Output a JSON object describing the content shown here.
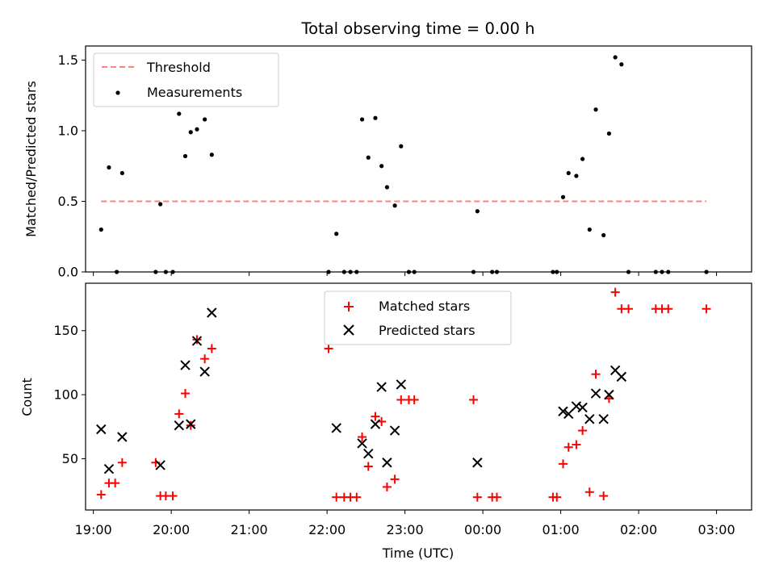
{
  "chart_data": [
    {
      "type": "scatter",
      "title": "Total observing time = 0.00 h",
      "ylabel": "Matched/Predicted stars",
      "xlabel": "",
      "xlim_hours": [
        18.9,
        27.45
      ],
      "ylim": [
        0,
        1.6
      ],
      "yticks": [
        0.0,
        0.5,
        1.0,
        1.5
      ],
      "ytick_labels": [
        "0.0",
        "0.5",
        "1.0",
        "1.5"
      ],
      "grid": false,
      "legend_position": "upper-left",
      "threshold": {
        "name": "Threshold",
        "value": 0.5,
        "x_range_hours": [
          19.1,
          26.87
        ],
        "color": "#ff8080",
        "style": "dashed"
      },
      "series": [
        {
          "name": "Measurements",
          "color": "#000000",
          "marker": "dot",
          "x_hours": [
            19.1,
            19.2,
            19.3,
            19.37,
            19.8,
            19.86,
            19.93,
            20.02,
            20.1,
            20.18,
            20.25,
            20.33,
            20.43,
            20.52,
            22.02,
            22.12,
            22.22,
            22.3,
            22.38,
            22.45,
            22.53,
            22.62,
            22.7,
            22.77,
            22.87,
            22.95,
            23.05,
            23.12,
            23.88,
            23.93,
            24.12,
            24.18,
            24.9,
            24.95,
            25.03,
            25.1,
            25.2,
            25.28,
            25.37,
            25.45,
            25.55,
            25.62,
            25.7,
            25.78,
            25.87,
            26.22,
            26.3,
            26.38,
            26.87
          ],
          "y": [
            0.3,
            0.74,
            0.0,
            0.7,
            0.0,
            0.48,
            0.0,
            0.0,
            1.12,
            0.82,
            0.99,
            1.01,
            1.08,
            0.83,
            0.0,
            0.27,
            0.0,
            0.0,
            0.0,
            1.08,
            0.81,
            1.09,
            0.75,
            0.6,
            0.47,
            0.89,
            0.0,
            0.0,
            0.0,
            0.43,
            0.0,
            0.0,
            0.0,
            0.0,
            0.53,
            0.7,
            0.68,
            0.8,
            0.3,
            1.15,
            0.26,
            0.98,
            1.52,
            1.47,
            0.0,
            0.0,
            0.0,
            0.0,
            0.0
          ]
        }
      ]
    },
    {
      "type": "scatter",
      "title": "",
      "ylabel": "Count",
      "xlabel": "Time (UTC)",
      "xlim_hours": [
        18.9,
        27.45
      ],
      "xticks_hours": [
        19,
        20,
        21,
        22,
        23,
        24,
        25,
        26,
        27
      ],
      "xtick_labels": [
        "19:00",
        "20:00",
        "21:00",
        "22:00",
        "23:00",
        "00:00",
        "01:00",
        "02:00",
        "03:00"
      ],
      "ylim": [
        10,
        187
      ],
      "yticks": [
        50,
        100,
        150
      ],
      "ytick_labels": [
        "50",
        "100",
        "150"
      ],
      "grid": false,
      "legend_position": "upper-center",
      "series": [
        {
          "name": "Matched stars",
          "color": "#ff0000",
          "marker": "plus",
          "x_hours": [
            19.1,
            19.2,
            19.28,
            19.37,
            19.8,
            19.86,
            19.93,
            20.02,
            20.1,
            20.18,
            20.25,
            20.33,
            20.43,
            20.52,
            22.02,
            22.12,
            22.22,
            22.3,
            22.38,
            22.45,
            22.53,
            22.62,
            22.7,
            22.77,
            22.87,
            22.95,
            23.05,
            23.12,
            23.88,
            23.93,
            24.12,
            24.18,
            24.9,
            24.95,
            25.03,
            25.1,
            25.2,
            25.28,
            25.37,
            25.45,
            25.55,
            25.62,
            25.7,
            25.78,
            25.87,
            26.22,
            26.3,
            26.38,
            26.87
          ],
          "y": [
            22,
            31,
            31,
            47,
            47,
            21,
            21,
            21,
            85,
            101,
            76,
            143,
            128,
            136,
            136,
            20,
            20,
            20,
            20,
            67,
            44,
            83,
            79,
            28,
            34,
            96,
            96,
            96,
            96,
            20,
            20,
            20,
            20,
            20,
            46,
            59,
            61,
            72,
            24,
            116,
            21,
            97,
            180,
            167,
            167,
            167,
            167,
            167,
            167
          ]
        },
        {
          "name": "Predicted stars",
          "color": "#000000",
          "marker": "x",
          "x_hours": [
            19.1,
            19.2,
            19.37,
            19.86,
            20.1,
            20.18,
            20.25,
            20.33,
            20.43,
            20.52,
            22.12,
            22.45,
            22.53,
            22.62,
            22.7,
            22.77,
            22.87,
            22.95,
            23.93,
            25.03,
            25.1,
            25.2,
            25.28,
            25.37,
            25.45,
            25.55,
            25.62,
            25.7,
            25.78
          ],
          "y": [
            73,
            42,
            67,
            45,
            76,
            123,
            77,
            142,
            118,
            164,
            74,
            62,
            54,
            77,
            106,
            47,
            72,
            108,
            47,
            87,
            85,
            91,
            90,
            81,
            101,
            81,
            100,
            119,
            114
          ]
        }
      ]
    }
  ]
}
